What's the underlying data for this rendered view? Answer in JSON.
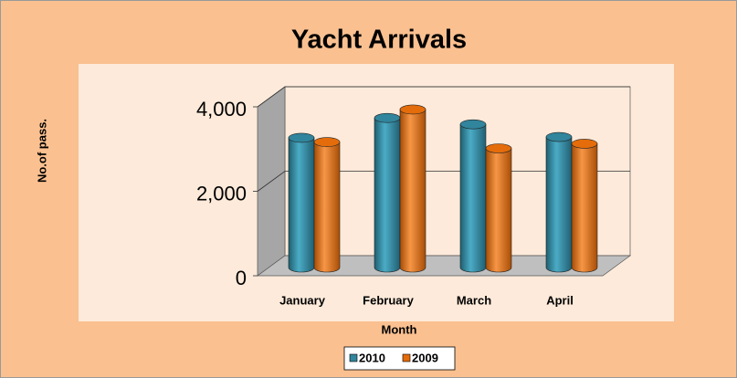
{
  "chart_data": {
    "type": "bar",
    "title": "Yacht Arrivals",
    "x_label": "Month",
    "y_label": "No.of pass.",
    "categories": [
      "January",
      "February",
      "March",
      "April"
    ],
    "series": [
      {
        "name": "2010",
        "color": "#31859c",
        "values": [
          3050,
          3520,
          3370,
          3070
        ]
      },
      {
        "name": "2009",
        "color": "#e46c0a",
        "values": [
          2950,
          3720,
          2800,
          2910
        ]
      }
    ],
    "ylim": [
      0,
      4000
    ],
    "yticks": [
      0,
      {
        "value": 2000,
        "label": "2,000"
      },
      {
        "value": 4000,
        "label": "4,000"
      }
    ],
    "grid": true,
    "legend": "bottom"
  }
}
